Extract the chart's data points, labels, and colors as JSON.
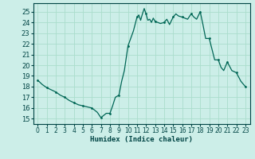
{
  "xlabel": "Humidex (Indice chaleur)",
  "background_color": "#cceee8",
  "grid_color": "#aaddcc",
  "line_color": "#006655",
  "marker_color": "#006655",
  "xlim": [
    -0.5,
    23.5
  ],
  "ylim": [
    14.5,
    25.8
  ],
  "yticks": [
    15,
    16,
    17,
    18,
    19,
    20,
    21,
    22,
    23,
    24,
    25
  ],
  "xticks": [
    0,
    1,
    2,
    3,
    4,
    5,
    6,
    7,
    8,
    9,
    10,
    11,
    12,
    13,
    14,
    15,
    16,
    17,
    18,
    19,
    20,
    21,
    22,
    23
  ],
  "x": [
    0,
    0.5,
    1,
    1.5,
    2,
    2.5,
    3,
    3.5,
    4,
    4.5,
    5,
    5.5,
    6,
    6.3,
    6.6,
    7,
    7.3,
    7.6,
    8,
    8.3,
    8.6,
    9,
    9.3,
    9.6,
    10,
    10.3,
    10.6,
    11,
    11.2,
    11.4,
    11.6,
    11.8,
    12,
    12.2,
    12.4,
    12.6,
    12.8,
    13,
    13.3,
    13.6,
    14,
    14.3,
    14.6,
    15,
    15.3,
    15.6,
    16,
    16.3,
    16.6,
    17,
    17.3,
    17.6,
    18,
    18.3,
    18.6,
    19,
    19.3,
    19.6,
    20,
    20.3,
    20.6,
    21,
    21.5,
    22,
    22.5,
    23
  ],
  "y": [
    18.6,
    18.2,
    17.9,
    17.7,
    17.5,
    17.2,
    17.0,
    16.7,
    16.5,
    16.3,
    16.2,
    16.1,
    16.0,
    15.8,
    15.6,
    15.1,
    15.3,
    15.5,
    15.5,
    16.2,
    17.0,
    17.2,
    18.5,
    19.5,
    21.8,
    22.5,
    23.2,
    24.5,
    24.7,
    24.2,
    24.8,
    25.3,
    24.8,
    24.2,
    24.3,
    24.0,
    24.4,
    24.1,
    24.0,
    23.9,
    24.0,
    24.3,
    23.8,
    24.5,
    24.8,
    24.6,
    24.5,
    24.4,
    24.3,
    24.8,
    24.5,
    24.3,
    25.0,
    23.8,
    22.5,
    22.5,
    21.5,
    20.5,
    20.5,
    19.8,
    19.5,
    20.3,
    19.5,
    19.3,
    18.5,
    18.0
  ],
  "marker_x": [
    0,
    1,
    2,
    3,
    4,
    5,
    6,
    7,
    8,
    9,
    10,
    11,
    12,
    13,
    14,
    15,
    16,
    17,
    18,
    19,
    20,
    21,
    22,
    23
  ],
  "marker_y": [
    18.6,
    17.9,
    17.5,
    17.0,
    16.5,
    16.2,
    16.0,
    15.1,
    15.5,
    17.2,
    21.8,
    24.5,
    24.8,
    24.1,
    24.0,
    24.5,
    24.5,
    24.8,
    25.0,
    22.5,
    20.5,
    20.3,
    19.3,
    18.0
  ]
}
